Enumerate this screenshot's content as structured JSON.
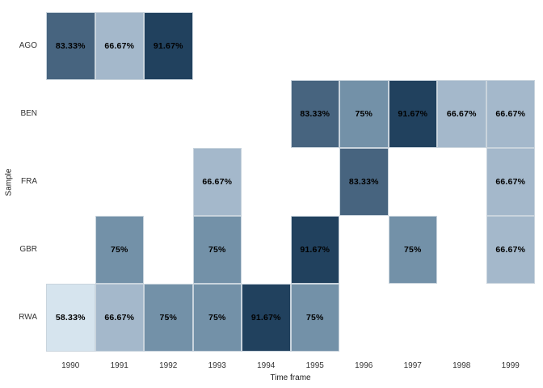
{
  "chart_data": {
    "type": "heatmap",
    "title": "",
    "xlabel": "Time frame",
    "ylabel": "Sample",
    "x_categories": [
      "1990",
      "1991",
      "1992",
      "1993",
      "1994",
      "1995",
      "1996",
      "1997",
      "1998",
      "1999"
    ],
    "y_categories": [
      "AGO",
      "BEN",
      "FRA",
      "GBR",
      "RWA"
    ],
    "legend": "none",
    "grid": false,
    "cells": [
      {
        "row": "AGO",
        "col": "1990",
        "value": 83.33,
        "label": "83.33%"
      },
      {
        "row": "AGO",
        "col": "1991",
        "value": 66.67,
        "label": "66.67%"
      },
      {
        "row": "AGO",
        "col": "1992",
        "value": 91.67,
        "label": "91.67%"
      },
      {
        "row": "BEN",
        "col": "1995",
        "value": 83.33,
        "label": "83.33%"
      },
      {
        "row": "BEN",
        "col": "1996",
        "value": 75,
        "label": "75%"
      },
      {
        "row": "BEN",
        "col": "1997",
        "value": 91.67,
        "label": "91.67%"
      },
      {
        "row": "BEN",
        "col": "1998",
        "value": 66.67,
        "label": "66.67%"
      },
      {
        "row": "BEN",
        "col": "1999",
        "value": 66.67,
        "label": "66.67%"
      },
      {
        "row": "FRA",
        "col": "1993",
        "value": 66.67,
        "label": "66.67%"
      },
      {
        "row": "FRA",
        "col": "1996",
        "value": 83.33,
        "label": "83.33%"
      },
      {
        "row": "FRA",
        "col": "1999",
        "value": 66.67,
        "label": "66.67%"
      },
      {
        "row": "GBR",
        "col": "1991",
        "value": 75,
        "label": "75%"
      },
      {
        "row": "GBR",
        "col": "1993",
        "value": 75,
        "label": "75%"
      },
      {
        "row": "GBR",
        "col": "1995",
        "value": 91.67,
        "label": "91.67%"
      },
      {
        "row": "GBR",
        "col": "1997",
        "value": 75,
        "label": "75%"
      },
      {
        "row": "GBR",
        "col": "1999",
        "value": 66.67,
        "label": "66.67%"
      },
      {
        "row": "RWA",
        "col": "1990",
        "value": 58.33,
        "label": "58.33%"
      },
      {
        "row": "RWA",
        "col": "1991",
        "value": 66.67,
        "label": "66.67%"
      },
      {
        "row": "RWA",
        "col": "1992",
        "value": 75,
        "label": "75%"
      },
      {
        "row": "RWA",
        "col": "1993",
        "value": 75,
        "label": "75%"
      },
      {
        "row": "RWA",
        "col": "1994",
        "value": 91.67,
        "label": "91.67%"
      },
      {
        "row": "RWA",
        "col": "1995",
        "value": 75,
        "label": "75%"
      }
    ],
    "value_colors": {
      "58.33": "#d6e4ee",
      "66.67": "#a4b8cb",
      "75": "#7391a8",
      "83.33": "#47647f",
      "91.67": "#21415e"
    },
    "cell_text_color": "#000000",
    "background_color": "#ffffff"
  }
}
